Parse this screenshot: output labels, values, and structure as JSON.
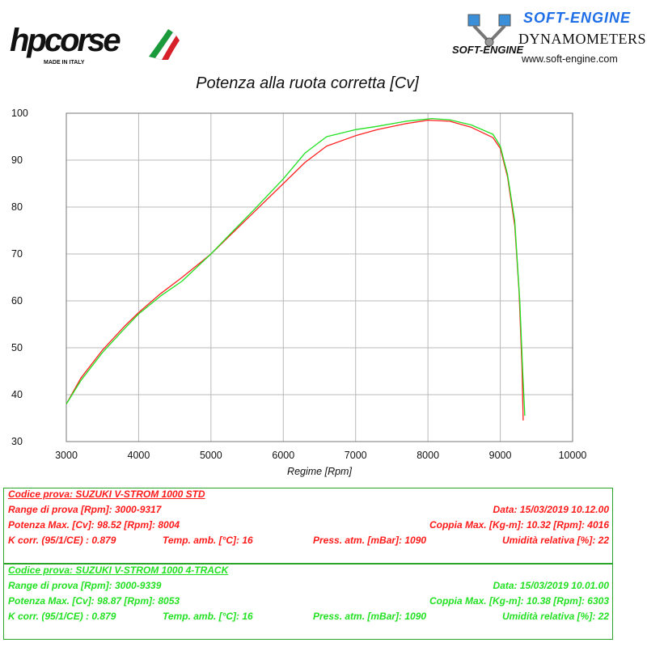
{
  "logos": {
    "hp_text": "hpcorse",
    "hp_sub": "MADE IN ITALY",
    "se_title": "SOFT-ENGINE",
    "se_subtitle": "DYNAMOMETERS",
    "se_url": "www.soft-engine.com",
    "se_mark": "SOFT-ENGINE"
  },
  "chart_data": {
    "type": "line",
    "title": "Potenza alla ruota corretta [Cv]",
    "xlabel": "Regime [Rpm]",
    "ylabel": "",
    "xlim": [
      3000,
      10000
    ],
    "ylim": [
      30,
      100
    ],
    "xticks": [
      3000,
      4000,
      5000,
      6000,
      7000,
      8000,
      9000,
      10000
    ],
    "yticks": [
      30,
      40,
      50,
      60,
      70,
      80,
      90,
      100
    ],
    "grid": true,
    "series": [
      {
        "color": "#ff2020",
        "points": [
          [
            3000,
            38
          ],
          [
            3200,
            43.5
          ],
          [
            3500,
            49.5
          ],
          [
            3800,
            54.5
          ],
          [
            4000,
            57.5
          ],
          [
            4300,
            61.5
          ],
          [
            4600,
            65
          ],
          [
            5000,
            70
          ],
          [
            5300,
            74.5
          ],
          [
            5600,
            79
          ],
          [
            6000,
            85
          ],
          [
            6300,
            89.5
          ],
          [
            6600,
            93
          ],
          [
            7000,
            95.2
          ],
          [
            7300,
            96.5
          ],
          [
            7700,
            97.8
          ],
          [
            8000,
            98.52
          ],
          [
            8300,
            98.3
          ],
          [
            8600,
            97
          ],
          [
            8900,
            94.8
          ],
          [
            9000,
            92.5
          ],
          [
            9100,
            86.5
          ],
          [
            9200,
            76
          ],
          [
            9260,
            62
          ],
          [
            9300,
            46
          ],
          [
            9317,
            34.5
          ]
        ]
      },
      {
        "color": "#22e022",
        "points": [
          [
            3000,
            38
          ],
          [
            3200,
            43
          ],
          [
            3500,
            49
          ],
          [
            3800,
            54
          ],
          [
            4000,
            57.2
          ],
          [
            4300,
            61
          ],
          [
            4600,
            64.2
          ],
          [
            5000,
            70
          ],
          [
            5300,
            74.8
          ],
          [
            5600,
            79.5
          ],
          [
            6000,
            86
          ],
          [
            6300,
            91.5
          ],
          [
            6600,
            95
          ],
          [
            7000,
            96.5
          ],
          [
            7300,
            97.2
          ],
          [
            7700,
            98.3
          ],
          [
            8053,
            98.87
          ],
          [
            8300,
            98.6
          ],
          [
            8600,
            97.5
          ],
          [
            8900,
            95.5
          ],
          [
            9000,
            93
          ],
          [
            9100,
            87
          ],
          [
            9200,
            77
          ],
          [
            9270,
            60
          ],
          [
            9310,
            45
          ],
          [
            9339,
            35.5
          ]
        ]
      }
    ]
  },
  "tests": [
    {
      "color": "#ff1a1a",
      "codice": "Codice prova: SUZUKI V-STROM 1000 STD",
      "range": "Range di prova [Rpm]: 3000-9317",
      "data": "Data: 15/03/2019  10.12.00",
      "potenza": "Potenza Max. [Cv]: 98.52  [Rpm]: 8004",
      "coppia": "Coppia Max. [Kg-m]: 10.32  [Rpm]: 4016",
      "kcorr": "K corr. (95/1/CE) : 0.879",
      "temp": "Temp. amb. [°C]: 16",
      "press": "Press. atm. [mBar]: 1090",
      "umid": "Umidità relativa [%]: 22"
    },
    {
      "color": "#22e022",
      "codice": "Codice prova: SUZUKI V-STROM 1000  4-TRACK",
      "range": "Range di prova [Rpm]: 3000-9339",
      "data": "Data: 15/03/2019  10.01.00",
      "potenza": "Potenza Max. [Cv]: 98.87  [Rpm]: 8053",
      "coppia": "Coppia Max. [Kg-m]: 10.38  [Rpm]: 6303",
      "kcorr": "K corr. (95/1/CE) : 0.879",
      "temp": "Temp. amb. [°C]: 16",
      "press": "Press. atm. [mBar]: 1090",
      "umid": "Umidità relativa [%]: 22"
    }
  ]
}
